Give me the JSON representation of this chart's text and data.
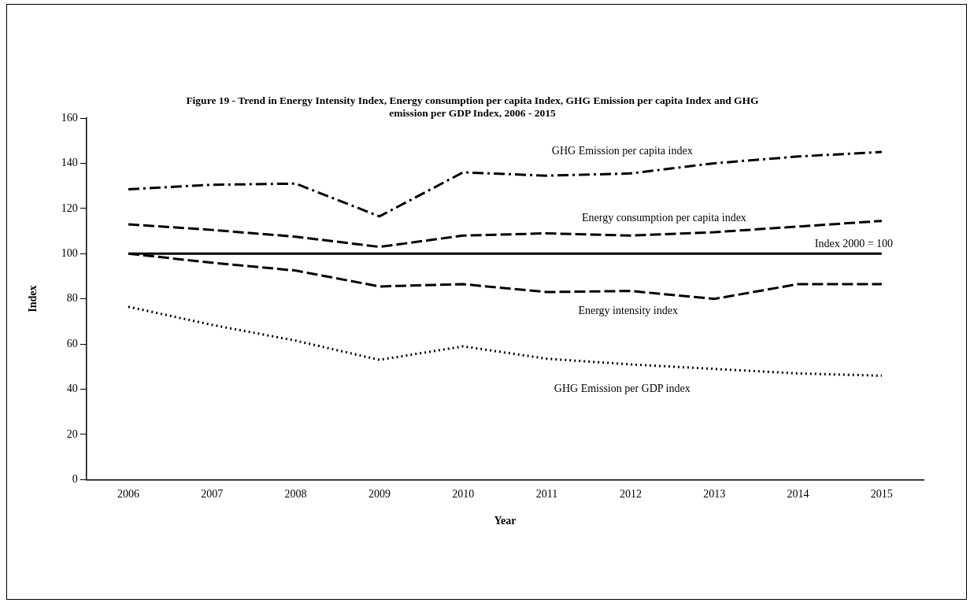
{
  "chart_data": {
    "type": "line",
    "title": "Figure 19 - Trend in Energy Intensity Index, Energy consumption per capita Index, GHG Emission per capita Index and GHG emission per GDP Index, 2006 - 2015",
    "xlabel": "Year",
    "ylabel": "Index",
    "categories": [
      "2006",
      "2007",
      "2008",
      "2009",
      "2010",
      "2011",
      "2012",
      "2013",
      "2014",
      "2015"
    ],
    "series": [
      {
        "name": "GHG Emission per capita index",
        "color": "#000000",
        "line_style": "dashdot",
        "values": [
          128.5,
          130.5,
          131,
          116.5,
          136,
          134.5,
          135.5,
          140,
          143,
          145
        ]
      },
      {
        "name": "Energy consumption per capita index",
        "color": "#000000",
        "line_style": "dashed",
        "values": [
          113,
          110.5,
          107.5,
          103,
          108,
          109,
          108,
          109.5,
          112,
          114.5
        ]
      },
      {
        "name": "Index 2000 = 100",
        "color": "#000000",
        "line_style": "solid",
        "values": [
          100,
          100,
          100,
          100,
          100,
          100,
          100,
          100,
          100,
          100
        ]
      },
      {
        "name": "Energy intensity index",
        "color": "#000000",
        "line_style": "dashed",
        "values": [
          100,
          96,
          92.5,
          85.5,
          86.5,
          83,
          83.5,
          80,
          86.5,
          86.5
        ]
      },
      {
        "name": "GHG Emission per GDP index",
        "color": "#000000",
        "line_style": "dotted",
        "values": [
          76.5,
          68.5,
          61.5,
          53,
          59,
          53.5,
          51,
          49,
          47,
          46
        ]
      }
    ],
    "ylim": [
      0,
      160
    ],
    "yticks": [
      0,
      20,
      40,
      60,
      80,
      100,
      120,
      140,
      160
    ],
    "grid": false,
    "legend": false,
    "marker": "none"
  }
}
